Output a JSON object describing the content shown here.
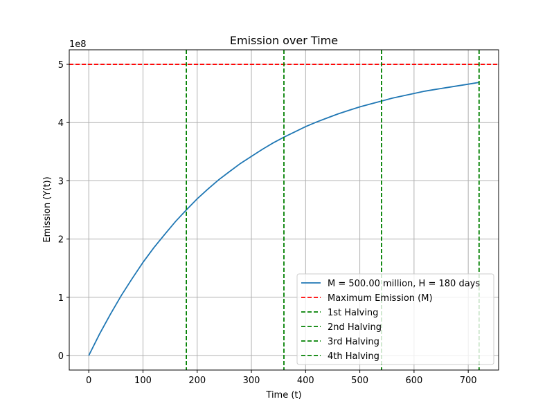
{
  "chart_data": {
    "type": "line",
    "title": "Emission over Time",
    "xlabel": "Time (t)",
    "ylabel": "Emission (Y(t))",
    "y_offset_label": "1e8",
    "xlim": [
      -36,
      756
    ],
    "ylim": [
      -25000000,
      525000000
    ],
    "x_ticks": [
      0,
      100,
      200,
      300,
      400,
      500,
      600,
      700
    ],
    "y_ticks": [
      0,
      100000000,
      200000000,
      300000000,
      400000000,
      500000000
    ],
    "y_tick_labels": [
      "0",
      "1",
      "2",
      "3",
      "4",
      "5"
    ],
    "grid": true,
    "legend_position": "lower-right",
    "series": [
      {
        "name": "M = 500.00 million, H = 180 days",
        "kind": "curve",
        "color": "#1f77b4",
        "style": "solid",
        "x": [
          0,
          20,
          40,
          60,
          80,
          100,
          120,
          140,
          160,
          180,
          200,
          220,
          240,
          260,
          280,
          300,
          320,
          340,
          360,
          380,
          400,
          420,
          440,
          460,
          480,
          500,
          520,
          540,
          560,
          580,
          600,
          620,
          640,
          660,
          680,
          700,
          720
        ],
        "y": [
          0,
          37000000,
          71000000,
          103000000,
          132000000,
          160000000,
          185000000,
          208000000,
          230000000,
          250000000,
          269000000,
          286000000,
          302000000,
          316000000,
          330000000,
          342000000,
          354000000,
          365000000,
          375000000,
          384000000,
          393000000,
          401000000,
          408000000,
          415000000,
          421000000,
          427000000,
          432000000,
          437000000,
          442000000,
          446000000,
          450000000,
          454000000,
          457000000,
          460000000,
          463000000,
          466000000,
          469000000
        ]
      },
      {
        "name": "Maximum Emission (M)",
        "kind": "hline",
        "color": "#ff0000",
        "style": "dashed",
        "y": 500000000
      },
      {
        "name": "1st Halving",
        "kind": "vline",
        "color": "#008000",
        "style": "dashed",
        "x": 180
      },
      {
        "name": "2nd Halving",
        "kind": "vline",
        "color": "#008000",
        "style": "dashed",
        "x": 360
      },
      {
        "name": "3rd Halving",
        "kind": "vline",
        "color": "#008000",
        "style": "dashed",
        "x": 540
      },
      {
        "name": "4th Halving",
        "kind": "vline",
        "color": "#008000",
        "style": "dashed",
        "x": 720
      }
    ]
  }
}
